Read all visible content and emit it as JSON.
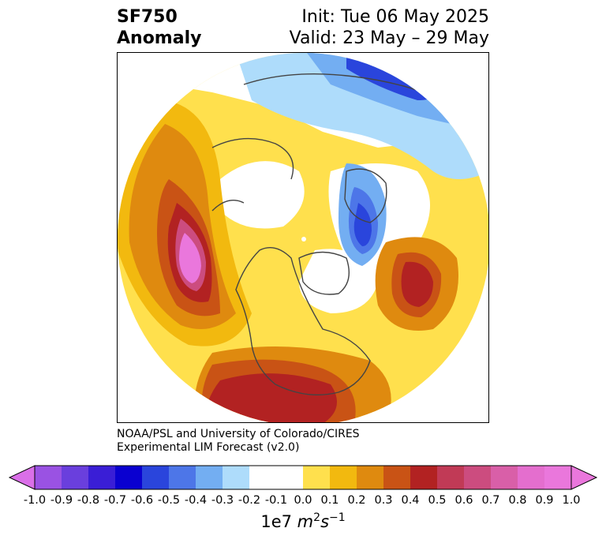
{
  "header": {
    "variable": "SF750",
    "field": "Anomaly",
    "init": "Init: Tue 06 May 2025",
    "valid": "Valid: 23 May – 29 May"
  },
  "credit": {
    "line1": "NOAA/PSL and University of Colorado/CIRES",
    "line2": "Experimental LIM Forecast (v2.0)"
  },
  "colorbar": {
    "ticks": [
      "-1.0",
      "-0.9",
      "-0.8",
      "-0.7",
      "-0.6",
      "-0.5",
      "-0.4",
      "-0.3",
      "-0.2",
      "-0.1",
      "0.0",
      "0.1",
      "0.2",
      "0.3",
      "0.4",
      "0.5",
      "0.6",
      "0.7",
      "0.8",
      "0.9",
      "1.0"
    ],
    "colors": [
      "#9a52e3",
      "#6a3fdd",
      "#3a1ed6",
      "#0a00d0",
      "#2a45dc",
      "#4d76e8",
      "#73aef2",
      "#aedcfb",
      "#ffffff",
      "#ffffff",
      "#ffe04d",
      "#f2b90f",
      "#df8a0f",
      "#c95315",
      "#b22222",
      "#c13a56",
      "#cc4c7f",
      "#d95fa8",
      "#e46ece",
      "#ea77dc"
    ],
    "under_color": "#da6fe8",
    "over_color": "#ea77dc",
    "units_prefix": "1e7 ",
    "units_m": "m",
    "units_m_exp": "2",
    "units_s": "s",
    "units_s_exp": "−1"
  },
  "map": {
    "projection": "north-polar-stereographic",
    "features": [
      "coastlines",
      "country-borders",
      "us-state-borders"
    ],
    "anomaly_centers": [
      {
        "region": "NE Pacific / off west coast of North America",
        "sign": "positive",
        "peak": "0.9–1.0"
      },
      {
        "region": "Southeastern United States",
        "sign": "positive",
        "peak": "0.5–0.6"
      },
      {
        "region": "North Atlantic / Western Europe",
        "sign": "positive",
        "peak": "0.5–0.6"
      },
      {
        "region": "Scandinavia / Barents Sea",
        "sign": "negative",
        "peak": "-0.5 to -0.6"
      },
      {
        "region": "Siberia / Arctic",
        "sign": "negative",
        "peak": "-0.4 to -0.5"
      }
    ]
  }
}
